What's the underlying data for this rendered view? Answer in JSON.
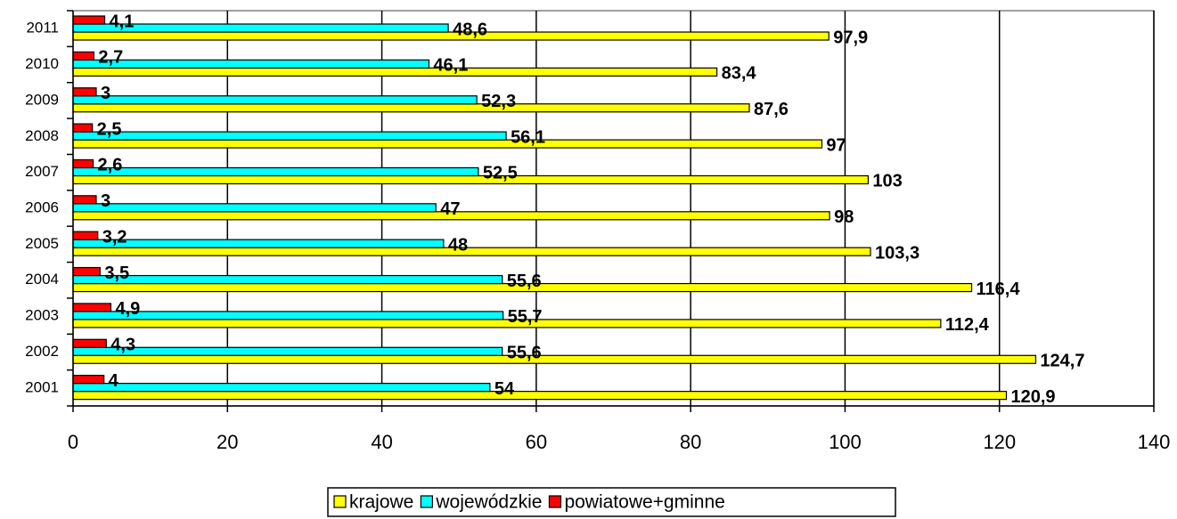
{
  "chart_data": {
    "type": "bar",
    "orientation": "horizontal",
    "categories": [
      "2001",
      "2002",
      "2003",
      "2004",
      "2005",
      "2006",
      "2007",
      "2008",
      "2009",
      "2010",
      "2011"
    ],
    "series": [
      {
        "name": "krajowe",
        "color": "#ffff00",
        "values": [
          120.9,
          124.7,
          112.4,
          116.4,
          103.3,
          98,
          103,
          97,
          87.6,
          83.4,
          97.9
        ],
        "value_labels": [
          "120,9",
          "124,7",
          "112,4",
          "116,4",
          "103,3",
          "98",
          "103",
          "97",
          "87,6",
          "83,4",
          "97,9"
        ]
      },
      {
        "name": "wojewódzkie",
        "color": "#00ffff",
        "values": [
          54,
          55.6,
          55.7,
          55.6,
          48,
          47,
          52.5,
          56.1,
          52.3,
          46.1,
          48.6
        ],
        "value_labels": [
          "54",
          "55,6",
          "55,7",
          "55,6",
          "48",
          "47",
          "52,5",
          "56,1",
          "52,3",
          "46,1",
          "48,6"
        ]
      },
      {
        "name": "powiatowe+gminne",
        "color": "#ff0000",
        "values": [
          4,
          4.3,
          4.9,
          3.5,
          3.2,
          3,
          2.6,
          2.5,
          3,
          2.7,
          4.1
        ],
        "value_labels": [
          "4",
          "4,3",
          "4,9",
          "3,5",
          "3,2",
          "3",
          "2,6",
          "2,5",
          "3",
          "2,7",
          "4,1"
        ]
      }
    ],
    "xlim": [
      0,
      140
    ],
    "xticks": [
      0,
      20,
      40,
      60,
      80,
      100,
      120,
      140
    ],
    "grid": true,
    "legend": "bottom"
  }
}
